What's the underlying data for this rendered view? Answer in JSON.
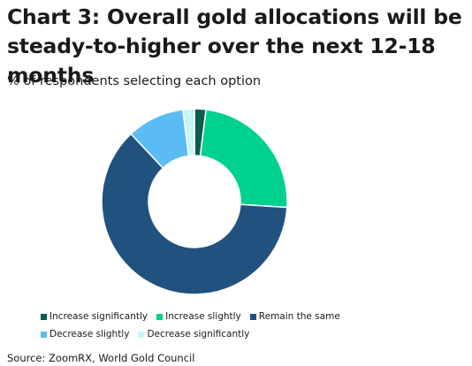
{
  "chart_data": {
    "type": "pie",
    "title": "Chart 3: Overall gold allocations will be\nsteady-to-higher over the next 12-18 months",
    "subtitle": "% of respondents selecting each option",
    "source": "Source: ZoomRX, World Gold Council",
    "donut": true,
    "legend_position": "bottom",
    "categories": [
      "Increase significantly",
      "Increase slightly",
      "Remain the same",
      "Decrease slightly",
      "Decrease significantly"
    ],
    "values": [
      2,
      24,
      62,
      10,
      2
    ],
    "colors": [
      "#0b5e4d",
      "#00d18f",
      "#21527f",
      "#5bbcf5",
      "#c9f5f7"
    ]
  }
}
